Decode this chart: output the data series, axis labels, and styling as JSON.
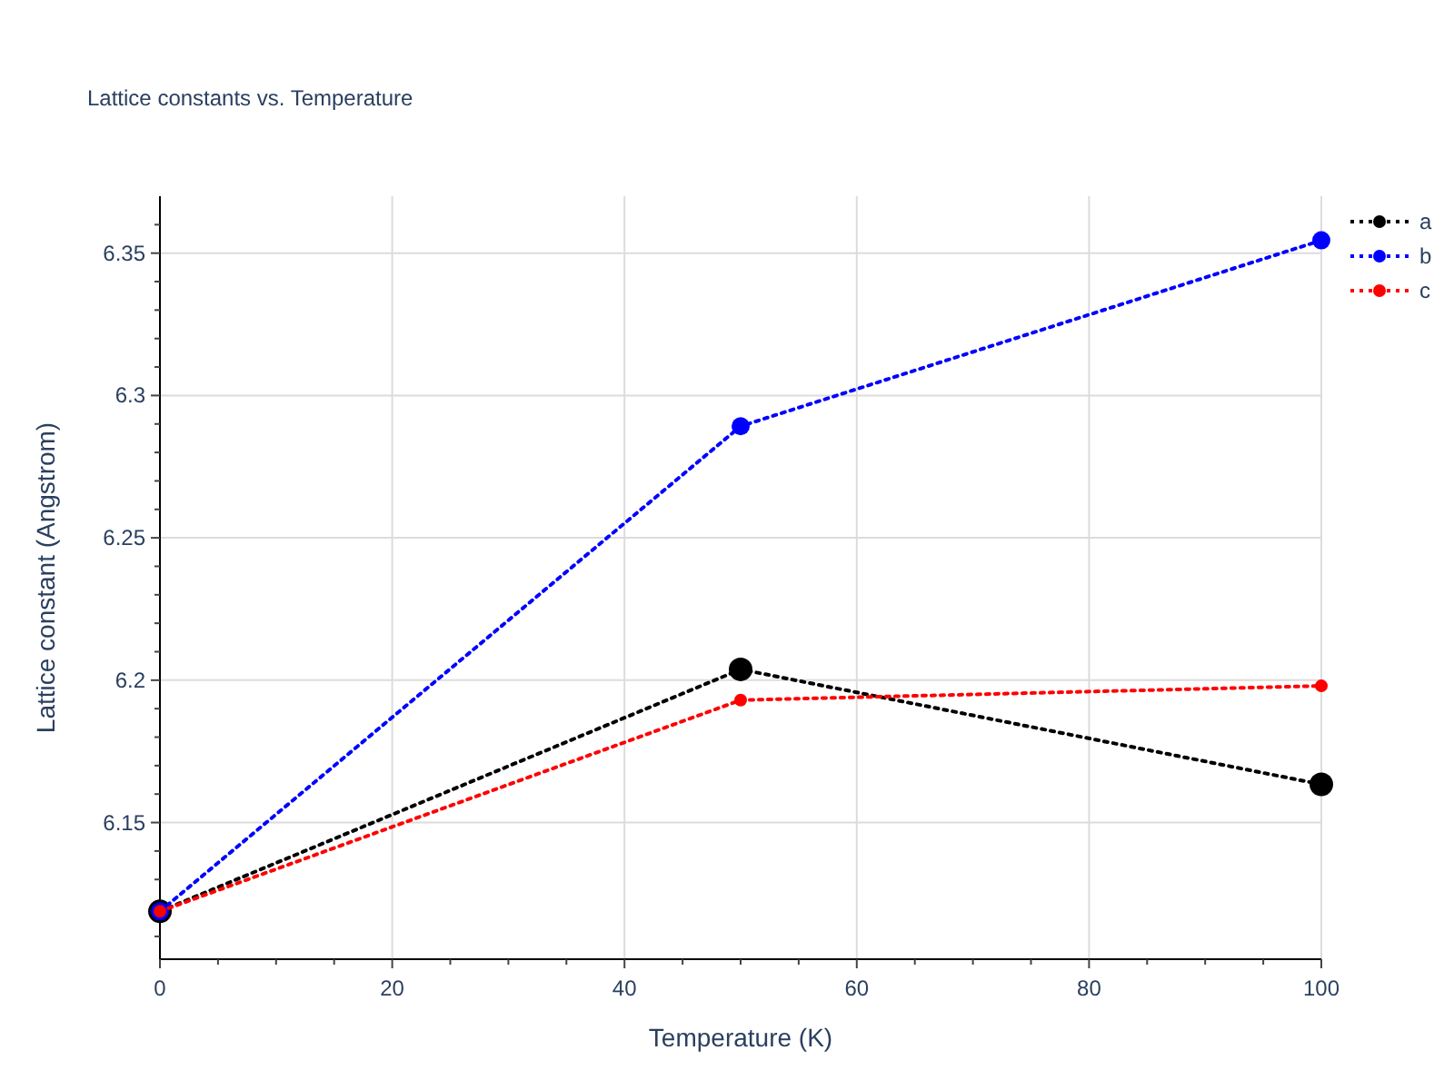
{
  "chart_data": {
    "type": "line",
    "title": "Lattice constants vs. Temperature",
    "xlabel": "Temperature (K)",
    "ylabel": "Lattice constant (Angstrom)",
    "x": [
      0,
      50,
      100
    ],
    "series": [
      {
        "name": "a",
        "color": "#000000",
        "values": [
          6.1188,
          6.2038,
          6.1634
        ]
      },
      {
        "name": "b",
        "color": "#0000ff",
        "values": [
          6.1188,
          6.2892,
          6.3545
        ]
      },
      {
        "name": "c",
        "color": "#ff0000",
        "values": [
          6.1188,
          6.193,
          6.198
        ]
      }
    ],
    "xlim": [
      0,
      100
    ],
    "xticks": [
      0,
      {
        "value": 5,
        "label": null
      },
      {
        "value": 10,
        "label": null
      },
      {
        "value": 15,
        "label": null
      },
      20,
      {
        "value": 25,
        "label": null
      },
      {
        "value": 30,
        "label": null
      },
      {
        "value": 35,
        "label": null
      },
      40,
      {
        "value": 45,
        "label": null
      },
      {
        "value": 50,
        "label": null
      },
      {
        "value": 55,
        "label": null
      },
      60,
      {
        "value": 65,
        "label": null
      },
      {
        "value": 70,
        "label": null
      },
      {
        "value": 75,
        "label": null
      },
      80,
      {
        "value": 85,
        "label": null
      },
      {
        "value": 90,
        "label": null
      },
      {
        "value": 95,
        "label": null
      },
      100
    ],
    "ylim": [
      6.102,
      6.37
    ],
    "yticks": [
      {
        "value": 6.11,
        "label": null
      },
      {
        "value": 6.12,
        "label": null
      },
      {
        "value": 6.13,
        "label": null
      },
      {
        "value": 6.14,
        "label": null
      },
      6.15,
      {
        "value": 6.16,
        "label": null
      },
      {
        "value": 6.17,
        "label": null
      },
      {
        "value": 6.18,
        "label": null
      },
      {
        "value": 6.19,
        "label": null
      },
      6.2,
      {
        "value": 6.21,
        "label": null
      },
      {
        "value": 6.22,
        "label": null
      },
      {
        "value": 6.23,
        "label": null
      },
      {
        "value": 6.24,
        "label": null
      },
      6.25,
      {
        "value": 6.26,
        "label": null
      },
      {
        "value": 6.27,
        "label": null
      },
      {
        "value": 6.28,
        "label": null
      },
      {
        "value": 6.29,
        "label": null
      },
      6.3,
      {
        "value": 6.31,
        "label": null
      },
      {
        "value": 6.32,
        "label": null
      },
      {
        "value": 6.33,
        "label": null
      },
      {
        "value": 6.34,
        "label": null
      },
      6.35,
      {
        "value": 6.36,
        "label": null
      }
    ],
    "grid": true,
    "legend": "top right",
    "marker": "circle",
    "line_style": "dotted"
  }
}
